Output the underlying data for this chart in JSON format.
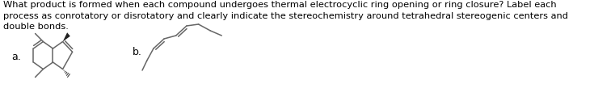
{
  "title_text": "What product is formed when each compound undergoes thermal electrocyclic ring opening or ring closure? Label each\nprocess as conrotatory or disrotatory and clearly indicate the stereochemistry around tetrahedral stereogenic centers and\ndouble bonds.",
  "label_a": "a.",
  "label_b": "b.",
  "bg_color": "#ffffff",
  "text_color": "#000000",
  "line_color": "#666666",
  "title_fontsize": 8.2,
  "label_fontsize": 9,
  "lw": 1.1
}
